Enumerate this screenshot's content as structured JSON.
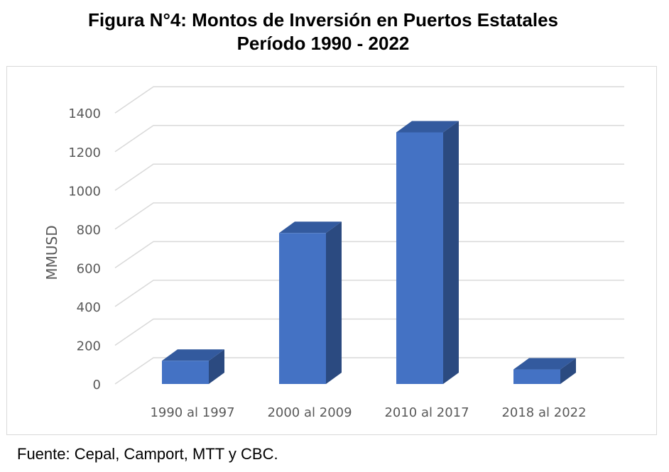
{
  "title": {
    "line1": "Figura N°4: Montos de Inversión en Puertos Estatales",
    "line2": "Período 1990 - 2022"
  },
  "source": "Fuente: Cepal, Camport, MTT y CBC.",
  "chart_data": {
    "type": "bar",
    "three_d": true,
    "categories": [
      "1990 al 1997",
      "2000 al 2009",
      "2010 al 2017",
      "2018 al 2022"
    ],
    "values": [
      120,
      780,
      1300,
      75
    ],
    "ylabel": "MMUSD",
    "xlabel": "",
    "ylim": [
      0,
      1400
    ],
    "yticks": [
      0,
      200,
      400,
      600,
      800,
      1000,
      1200,
      1400
    ],
    "grid": true,
    "legend": "none",
    "colors": {
      "front": "#4472c4",
      "side": "#2b4a80",
      "top": "#335a9e",
      "grid": "#d9d9d9",
      "text": "#595959"
    }
  }
}
